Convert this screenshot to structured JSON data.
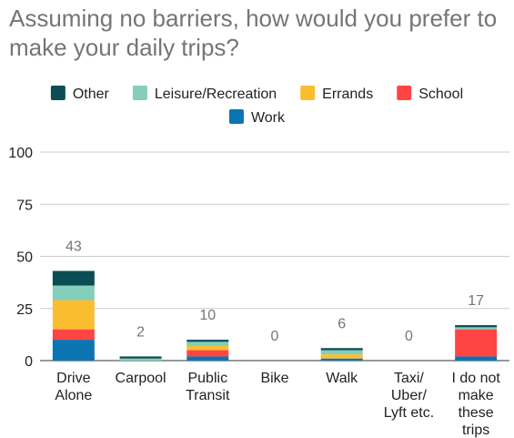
{
  "chart_data": {
    "type": "bar",
    "stacked": true,
    "title": "Assuming no barriers, how would you prefer to make your daily trips?",
    "xlabel": "",
    "ylabel": "",
    "ylim": [
      0,
      100
    ],
    "yticks": [
      0,
      25,
      50,
      75,
      100
    ],
    "grid": true,
    "legend_position": "top",
    "categories": [
      [
        "Drive",
        "Alone"
      ],
      [
        "Carpool"
      ],
      [
        "Public",
        "Transit"
      ],
      [
        "Bike"
      ],
      [
        "Walk"
      ],
      [
        "Taxi/",
        "Uber/",
        "Lyft etc."
      ],
      [
        "I do not",
        "make",
        "these",
        "trips"
      ]
    ],
    "totals": [
      43,
      2,
      10,
      0,
      6,
      0,
      17
    ],
    "series": [
      {
        "name": "Work",
        "color": "#0b75b3",
        "values": [
          10,
          0,
          2,
          0,
          1,
          0,
          2
        ]
      },
      {
        "name": "School",
        "color": "#ff4444",
        "values": [
          5,
          0,
          3,
          0,
          0,
          0,
          13
        ]
      },
      {
        "name": "Errands",
        "color": "#fbbd30",
        "values": [
          14,
          0,
          2,
          0,
          2,
          0,
          0
        ]
      },
      {
        "name": "Leisure/Recreation",
        "color": "#84ceba",
        "values": [
          7,
          1,
          2,
          0,
          2,
          0,
          1
        ]
      },
      {
        "name": "Other",
        "color": "#0c4d55",
        "values": [
          7,
          1,
          1,
          0,
          1,
          0,
          1
        ]
      }
    ],
    "legend_order": [
      "Other",
      "Leisure/Recreation",
      "Errands",
      "School",
      "Work"
    ]
  }
}
